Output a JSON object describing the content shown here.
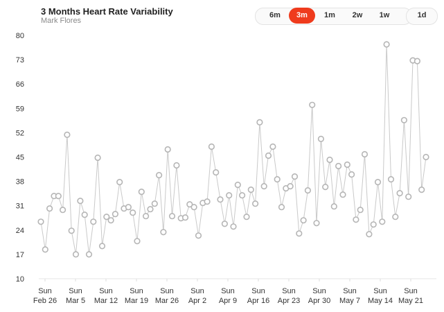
{
  "header": {
    "title": "3 Months Heart Rate Variability",
    "subtitle": "Mark Flores"
  },
  "range_selector": {
    "options": [
      "6m",
      "3m",
      "1m",
      "2w",
      "1w",
      "1d"
    ],
    "selected": "3m"
  },
  "colors": {
    "accent": "#ef3b1d",
    "line": "#c9c9c9",
    "marker_stroke": "#b5b5b5",
    "grid": "#eeeeee"
  },
  "chart_data": {
    "type": "line",
    "title": "3 Months Heart Rate Variability",
    "subtitle": "Mark Flores",
    "xlabel": "",
    "ylabel": "",
    "ylim": [
      10,
      80
    ],
    "yticks": [
      10,
      17,
      24,
      31,
      38,
      45,
      52,
      59,
      66,
      73,
      80
    ],
    "x_tick_labels": [
      [
        "Sun",
        "Feb 26"
      ],
      [
        "Sun",
        "Mar 5"
      ],
      [
        "Sun",
        "Mar 12"
      ],
      [
        "Sun",
        "Mar 19"
      ],
      [
        "Sun",
        "Mar 26"
      ],
      [
        "Sun",
        "Apr 2"
      ],
      [
        "Sun",
        "Apr 9"
      ],
      [
        "Sun",
        "Apr 16"
      ],
      [
        "Sun",
        "Apr 23"
      ],
      [
        "Sun",
        "Apr 30"
      ],
      [
        "Sun",
        "May 7"
      ],
      [
        "Sun",
        "May 14"
      ],
      [
        "Sun",
        "May 21"
      ]
    ],
    "grid": false,
    "series": [
      {
        "values": [
          26.4,
          18.4,
          30.2,
          33.8,
          33.8,
          29.8,
          51.4,
          23.8,
          17.0,
          32.4,
          28.4,
          17.0,
          26.4,
          44.8,
          19.4,
          27.8,
          26.8,
          28.6,
          37.8,
          30.2,
          30.6,
          29.0,
          20.8,
          35.0,
          28.0,
          30.0,
          31.6,
          39.8,
          23.4,
          47.2,
          28.0,
          42.6,
          27.4,
          27.6,
          31.4,
          30.6,
          22.4,
          31.8,
          32.2,
          48.0,
          40.6,
          32.8,
          25.8,
          34.0,
          25.0,
          37.0,
          34.0,
          27.8,
          35.6,
          31.6,
          55.0,
          36.6,
          45.4,
          48.0,
          38.6,
          30.6,
          36.0,
          36.6,
          39.4,
          23.0,
          26.8,
          35.4,
          60.0,
          26.0,
          50.2,
          36.4,
          44.2,
          30.8,
          42.4,
          34.2,
          42.8,
          40.0,
          27.0,
          29.8,
          45.8,
          22.8,
          25.6,
          37.8,
          26.4,
          77.4,
          38.6,
          27.8,
          34.6,
          55.6,
          33.6,
          72.8,
          72.6,
          35.6,
          45.0
        ]
      }
    ]
  }
}
